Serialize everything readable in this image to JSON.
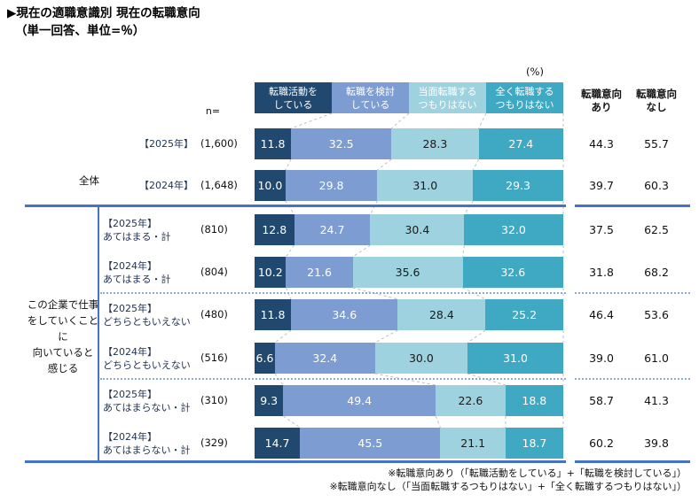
{
  "title": "▶現在の適職意識別 現在の転職意向",
  "subtitle": "（単一回答、単位=％）",
  "unit_label": "(%)",
  "n_label": "n=",
  "colors": {
    "line_blue": "#4472C4",
    "dot_blue": "#8EAADC",
    "connector_gray": "#BFBFBF"
  },
  "legend": {
    "items": [
      {
        "line1": "転職活動を",
        "line2": "している"
      },
      {
        "line1": "転職を検討",
        "line2": "している"
      },
      {
        "line1": "当面転職する",
        "line2": "つもりはない"
      },
      {
        "line1": "全く転職する",
        "line2": "つもりはない"
      }
    ]
  },
  "right_columns": {
    "yes_line1": "転職意向",
    "yes_line2": "あり",
    "no_line1": "転職意向",
    "no_line2": "なし"
  },
  "group_labels": {
    "g1": "全体",
    "g2_lines": [
      "この企業で仕事",
      "をしていくことに",
      "向いていると",
      "感じる"
    ]
  },
  "chart_data": {
    "type": "bar",
    "stacked": true,
    "orientation": "horizontal",
    "unit": "%",
    "xlim": [
      0,
      100
    ],
    "segments": [
      "転職活動をしている",
      "転職を検討している",
      "当面転職するつもりはない",
      "全く転職するつもりはない"
    ],
    "segment_colors": [
      "#21496F",
      "#7D9DD2",
      "#9ED2DE",
      "#3FA9C4"
    ],
    "segment_text_colors": [
      "#ffffff",
      "#ffffff",
      "#1a1a1a",
      "#ffffff"
    ],
    "rows": [
      {
        "group": "全体",
        "label": "【2025年】",
        "sublabel": "",
        "n": "(1,600)",
        "values": [
          11.8,
          32.5,
          28.3,
          27.4
        ],
        "intent_yes": 44.3,
        "intent_no": 55.7
      },
      {
        "group": "全体",
        "label": "【2024年】",
        "sublabel": "",
        "n": "(1,648)",
        "values": [
          10.0,
          29.8,
          31.0,
          29.3
        ],
        "intent_yes": 39.7,
        "intent_no": 60.3
      },
      {
        "group": "この企業で仕事をしていくことに向いていると感じる",
        "label": "【2025年】",
        "sublabel": "あてはまる・計",
        "n": "(810)",
        "values": [
          12.8,
          24.7,
          30.4,
          32.0
        ],
        "intent_yes": 37.5,
        "intent_no": 62.5
      },
      {
        "group": "この企業で仕事をしていくことに向いていると感じる",
        "label": "【2024年】",
        "sublabel": "あてはまる・計",
        "n": "(804)",
        "values": [
          10.2,
          21.6,
          35.6,
          32.6
        ],
        "intent_yes": 31.8,
        "intent_no": 68.2
      },
      {
        "group": "この企業で仕事をしていくことに向いていると感じる",
        "label": "【2025年】",
        "sublabel": "どちらともいえない",
        "n": "(480)",
        "values": [
          11.8,
          34.6,
          28.4,
          25.2
        ],
        "intent_yes": 46.4,
        "intent_no": 53.6
      },
      {
        "group": "この企業で仕事をしていくことに向いていると感じる",
        "label": "【2024年】",
        "sublabel": "どちらともいえない",
        "n": "(516)",
        "values": [
          6.6,
          32.4,
          30.0,
          31.0
        ],
        "intent_yes": 39.0,
        "intent_no": 61.0
      },
      {
        "group": "この企業で仕事をしていくことに向いていると感じる",
        "label": "【2025年】",
        "sublabel": "あてはまらない・計",
        "n": "(310)",
        "values": [
          9.3,
          49.4,
          22.6,
          18.8
        ],
        "intent_yes": 58.7,
        "intent_no": 41.3
      },
      {
        "group": "この企業で仕事をしていくことに向いていると感じる",
        "label": "【2024年】",
        "sublabel": "あてはまらない・計",
        "n": "(329)",
        "values": [
          14.7,
          45.5,
          21.1,
          18.7
        ],
        "intent_yes": 60.2,
        "intent_no": 39.8
      }
    ]
  },
  "footnotes": {
    "line1": "※転職意向あり（「転職活動をしている」+「転職を検討している」）",
    "line2": "※転職意向なし（「当面転職するつもりはない」+「全く転職するつもりはない」）"
  }
}
